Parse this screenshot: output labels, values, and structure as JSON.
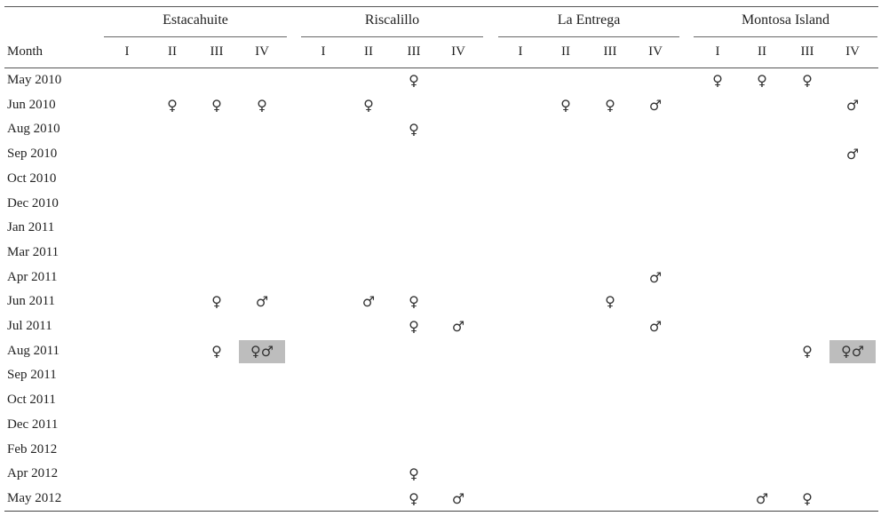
{
  "table": {
    "month_header": "Month",
    "sites": [
      {
        "name": "Estacahuite",
        "cols": [
          "I",
          "II",
          "III",
          "IV"
        ]
      },
      {
        "name": "Riscalillo",
        "cols": [
          "I",
          "II",
          "III",
          "IV"
        ]
      },
      {
        "name": "La Entrega",
        "cols": [
          "I",
          "II",
          "III",
          "IV"
        ]
      },
      {
        "name": "Montosa Island",
        "cols": [
          "I",
          "II",
          "III",
          "IV"
        ]
      }
    ],
    "rows": [
      {
        "month": "May 2010",
        "cells": [
          "",
          "",
          "",
          "",
          "",
          "",
          "♀",
          "",
          "",
          "",
          "",
          "",
          "♀",
          "♀",
          "♀",
          ""
        ]
      },
      {
        "month": "Jun 2010",
        "cells": [
          "",
          "♀",
          "♀",
          "♀",
          "",
          "♀",
          "",
          "",
          "",
          "♀",
          "♀",
          "♂",
          "",
          "",
          "",
          "♂"
        ]
      },
      {
        "month": "Aug 2010",
        "cells": [
          "",
          "",
          "",
          "",
          "",
          "",
          "♀",
          "",
          "",
          "",
          "",
          "",
          "",
          "",
          "",
          ""
        ]
      },
      {
        "month": "Sep 2010",
        "cells": [
          "",
          "",
          "",
          "",
          "",
          "",
          "",
          "",
          "",
          "",
          "",
          "",
          "",
          "",
          "",
          "♂"
        ]
      },
      {
        "month": "Oct 2010",
        "cells": [
          "",
          "",
          "",
          "",
          "",
          "",
          "",
          "",
          "",
          "",
          "",
          "",
          "",
          "",
          "",
          ""
        ]
      },
      {
        "month": "Dec 2010",
        "cells": [
          "",
          "",
          "",
          "",
          "",
          "",
          "",
          "",
          "",
          "",
          "",
          "",
          "",
          "",
          "",
          ""
        ]
      },
      {
        "month": "Jan 2011",
        "cells": [
          "",
          "",
          "",
          "",
          "",
          "",
          "",
          "",
          "",
          "",
          "",
          "",
          "",
          "",
          "",
          ""
        ]
      },
      {
        "month": "Mar 2011",
        "cells": [
          "",
          "",
          "",
          "",
          "",
          "",
          "",
          "",
          "",
          "",
          "",
          "",
          "",
          "",
          "",
          ""
        ]
      },
      {
        "month": "Apr 2011",
        "cells": [
          "",
          "",
          "",
          "",
          "",
          "",
          "",
          "",
          "",
          "",
          "",
          "♂",
          "",
          "",
          "",
          ""
        ]
      },
      {
        "month": "Jun 2011",
        "cells": [
          "",
          "",
          "♀",
          "♂",
          "",
          "♂",
          "♀",
          "",
          "",
          "",
          "♀",
          "",
          "",
          "",
          "",
          ""
        ]
      },
      {
        "month": "Jul 2011",
        "cells": [
          "",
          "",
          "",
          "",
          "",
          "",
          "♀",
          "♂",
          "",
          "",
          "",
          "♂",
          "",
          "",
          "",
          ""
        ]
      },
      {
        "month": "Aug 2011",
        "cells": [
          "",
          "",
          "♀",
          "♀♂",
          "",
          "",
          "",
          "",
          "",
          "",
          "",
          "",
          "",
          "",
          "♀",
          "♀♂"
        ]
      },
      {
        "month": "Sep 2011",
        "cells": [
          "",
          "",
          "",
          "",
          "",
          "",
          "",
          "",
          "",
          "",
          "",
          "",
          "",
          "",
          "",
          ""
        ]
      },
      {
        "month": "Oct 2011",
        "cells": [
          "",
          "",
          "",
          "",
          "",
          "",
          "",
          "",
          "",
          "",
          "",
          "",
          "",
          "",
          "",
          ""
        ]
      },
      {
        "month": "Dec 2011",
        "cells": [
          "",
          "",
          "",
          "",
          "",
          "",
          "",
          "",
          "",
          "",
          "",
          "",
          "",
          "",
          "",
          ""
        ]
      },
      {
        "month": "Feb 2012",
        "cells": [
          "",
          "",
          "",
          "",
          "",
          "",
          "",
          "",
          "",
          "",
          "",
          "",
          "",
          "",
          "",
          ""
        ]
      },
      {
        "month": "Apr 2012",
        "cells": [
          "",
          "",
          "",
          "",
          "",
          "",
          "♀",
          "",
          "",
          "",
          "",
          "",
          "",
          "",
          "",
          ""
        ]
      },
      {
        "month": "May 2012",
        "cells": [
          "",
          "",
          "",
          "",
          "",
          "",
          "♀",
          "♂",
          "",
          "",
          "",
          "",
          "",
          "♂",
          "♀",
          ""
        ]
      }
    ],
    "shaded_cells": [
      [
        11,
        3
      ],
      [
        11,
        15
      ]
    ],
    "shade_color": "#bdbdbd"
  }
}
